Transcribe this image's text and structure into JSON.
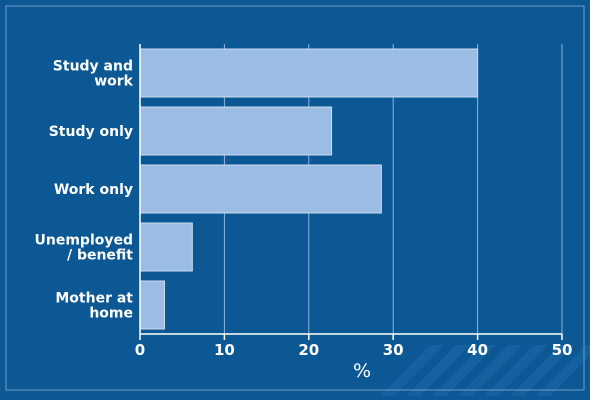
{
  "colors": {
    "background": "#0b5895",
    "bar": "#9bbde3",
    "bar_edge": "#c9dcf1",
    "gridline": "#8fb3dc",
    "text": "#ffffff",
    "frame": "#6f9ccc",
    "decor": "#1e6aa8"
  },
  "chart_data": {
    "type": "bar",
    "orientation": "horizontal",
    "categories": [
      [
        "Study and",
        "work"
      ],
      [
        "Study only"
      ],
      [
        "Work only"
      ],
      [
        "Unemployed",
        "/ benefit"
      ],
      [
        "Mother at",
        "home"
      ]
    ],
    "values": [
      40,
      22.7,
      28.6,
      6.2,
      2.9
    ],
    "xlabel": "%",
    "xlim": [
      0,
      50
    ],
    "xticks": [
      0,
      10,
      20,
      30,
      40,
      50
    ],
    "grid": true
  }
}
